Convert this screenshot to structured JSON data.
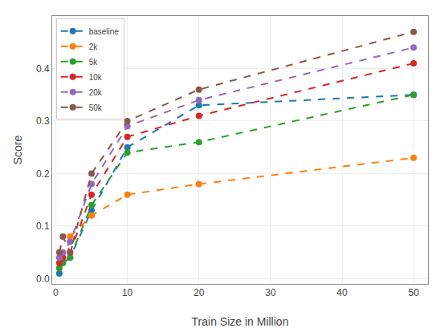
{
  "chart_data": {
    "type": "line",
    "xlabel": "Train Size in Million",
    "ylabel": "Score",
    "series": [
      {
        "name": "baseline",
        "x": [
          0.5,
          1,
          2,
          5,
          10,
          20,
          50
        ],
        "values": [
          0.01,
          0.03,
          0.04,
          0.13,
          0.25,
          0.33,
          0.35
        ]
      },
      {
        "name": "2k",
        "x": [
          2,
          5,
          10,
          20,
          50
        ],
        "values": [
          0.08,
          0.12,
          0.16,
          0.18,
          0.23
        ]
      },
      {
        "name": "5k",
        "x": [
          0.5,
          1,
          2,
          5,
          10,
          20,
          50
        ],
        "values": [
          0.02,
          0.03,
          0.04,
          0.14,
          0.24,
          0.26,
          0.35
        ]
      },
      {
        "name": "10k",
        "x": [
          0.5,
          1,
          2,
          5,
          10,
          20,
          50
        ],
        "values": [
          0.03,
          0.04,
          0.05,
          0.16,
          0.27,
          0.31,
          0.41
        ]
      },
      {
        "name": "20k",
        "x": [
          0.5,
          1,
          2,
          5,
          10,
          20,
          50
        ],
        "values": [
          0.04,
          0.05,
          0.07,
          0.18,
          0.29,
          0.34,
          0.44
        ]
      },
      {
        "name": "50k",
        "x": [
          0.5,
          1,
          2,
          5,
          10,
          20,
          50
        ],
        "values": [
          0.05,
          0.08,
          0.05,
          0.2,
          0.3,
          0.36,
          0.47
        ]
      }
    ],
    "xlim": [
      -0.5,
      52
    ],
    "xticks": [
      0,
      10,
      20,
      30,
      40,
      50
    ],
    "ylim": [
      -0.01,
      0.5
    ],
    "yticks": [
      {
        "value": 0.0,
        "label": "0.0"
      },
      0.1,
      0.2,
      0.3,
      0.4
    ],
    "grid": true,
    "legend": "upper left",
    "line_style": "dashed",
    "marker": "circle"
  }
}
